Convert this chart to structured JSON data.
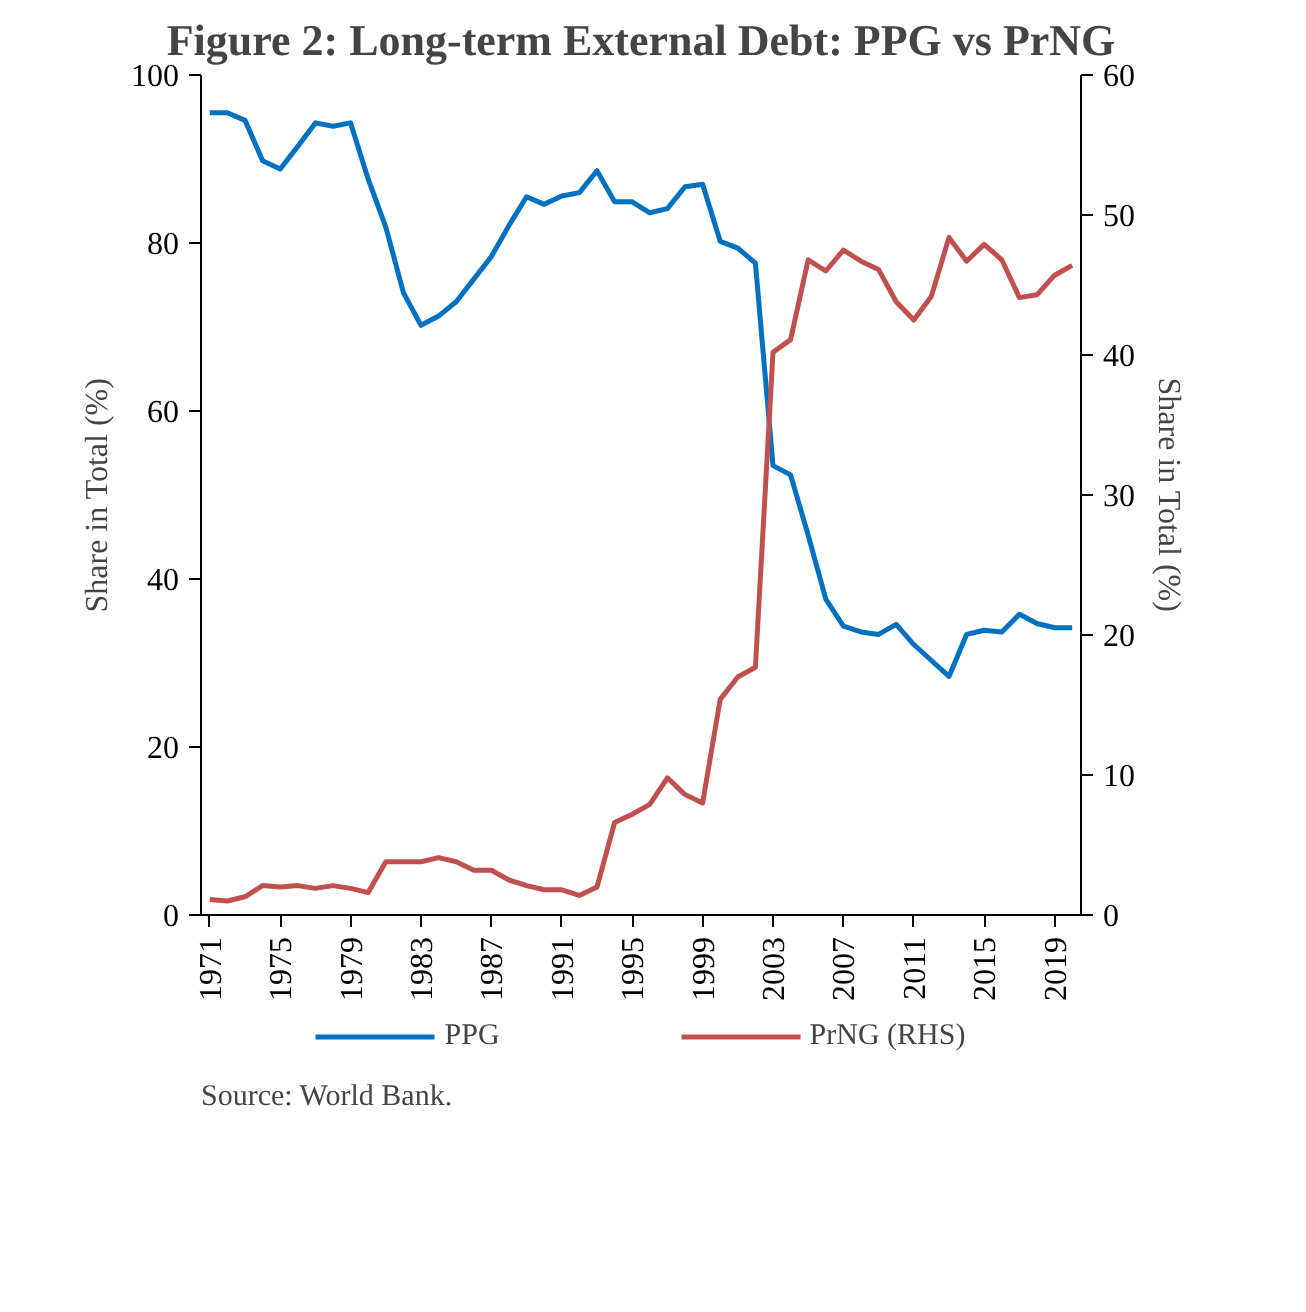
{
  "chart_data": {
    "type": "line",
    "title": "Figure 2: Long-term External Debt: PPG vs PrNG",
    "ylabel": "Share in Total (%)",
    "y2label": "Share in Total (%)",
    "x": [
      1971,
      1972,
      1973,
      1974,
      1975,
      1976,
      1977,
      1978,
      1979,
      1980,
      1981,
      1982,
      1983,
      1984,
      1985,
      1986,
      1987,
      1988,
      1989,
      1990,
      1991,
      1992,
      1993,
      1994,
      1995,
      1996,
      1997,
      1998,
      1999,
      2000,
      2001,
      2002,
      2003,
      2004,
      2005,
      2006,
      2007,
      2008,
      2009,
      2010,
      2011,
      2012,
      2013,
      2014,
      2015,
      2016,
      2017,
      2018,
      2019,
      2020
    ],
    "xlim": [
      1970.5,
      2020.5
    ],
    "xticks": [
      1971,
      1975,
      1979,
      1983,
      1987,
      1991,
      1995,
      1999,
      2003,
      2007,
      2011,
      2015,
      2019
    ],
    "ylim": [
      0,
      100
    ],
    "yticks": [
      0,
      20,
      40,
      60,
      80,
      100
    ],
    "y2lim": [
      0,
      60
    ],
    "y2ticks": [
      0,
      10,
      20,
      30,
      40,
      50,
      60
    ],
    "series": [
      {
        "name": "PPG",
        "color": "#0070c0",
        "values": [
          95.5,
          95.5,
          94.6,
          89.8,
          88.8,
          91.5,
          94.3,
          93.9,
          94.3,
          87.6,
          81.9,
          74.1,
          70.2,
          71.3,
          73.0,
          75.7,
          78.4,
          82.1,
          85.5,
          84.6,
          85.6,
          86.0,
          88.6,
          84.9,
          84.9,
          83.6,
          84.1,
          86.7,
          87.0,
          80.2,
          79.4,
          77.6,
          53.5,
          52.4,
          45.2,
          37.6,
          34.4,
          33.7,
          33.4,
          34.6,
          32.2,
          30.3,
          28.4,
          33.4,
          33.9,
          33.7,
          35.8,
          34.7,
          34.2,
          34.2
        ]
      },
      {
        "name": "PrNG (RHS)",
        "color": "#c0504d",
        "axis": "y2",
        "values": [
          1.1,
          1.0,
          1.3,
          2.1,
          2.0,
          2.1,
          1.9,
          2.1,
          1.9,
          1.6,
          3.8,
          3.8,
          3.8,
          4.1,
          3.8,
          3.2,
          3.2,
          2.5,
          2.1,
          1.8,
          1.8,
          1.4,
          2.0,
          6.6,
          7.2,
          7.9,
          9.8,
          8.6,
          8.0,
          15.4,
          17.0,
          17.7,
          40.2,
          41.1,
          46.8,
          46.0,
          47.5,
          46.7,
          46.1,
          43.8,
          42.5,
          44.2,
          48.4,
          46.7,
          47.9,
          46.8,
          44.1,
          44.3,
          45.7,
          46.4
        ]
      }
    ],
    "grid": false,
    "legend": "bottom",
    "annotations": [
      "Source: World Bank."
    ]
  }
}
